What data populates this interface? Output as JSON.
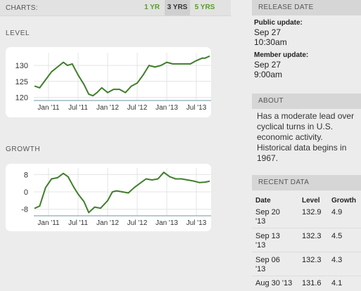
{
  "charts": {
    "label": "CHARTS:",
    "ranges": [
      "1 YR",
      "3 YRS",
      "5 YRS"
    ],
    "selected": "3 YRS",
    "accent": "#5a9a2e"
  },
  "level_chart": {
    "title": "LEVEL",
    "x_ticks": [
      "Jan '11",
      "Jul '11",
      "Jan '12",
      "Jul '12",
      "Jan '13",
      "Jul '13"
    ],
    "y_ticks": [
      "130",
      "125",
      "120"
    ]
  },
  "growth_chart": {
    "title": "GROWTH",
    "x_ticks": [
      "Jan '11",
      "Jul '11",
      "Jan '12",
      "Jul '12",
      "Jan '13",
      "Jul '13"
    ],
    "y_ticks": [
      "8",
      "0",
      "-8"
    ]
  },
  "chart_data": [
    {
      "type": "line",
      "title": "LEVEL",
      "ylim": [
        119,
        134
      ],
      "xlim": [
        2010.75,
        2013.75
      ],
      "line_color": "#3f7f2a",
      "x": [
        2010.77,
        2010.85,
        2010.95,
        2011.05,
        2011.15,
        2011.25,
        2011.32,
        2011.4,
        2011.5,
        2011.6,
        2011.68,
        2011.75,
        2011.82,
        2011.9,
        2012.0,
        2012.1,
        2012.2,
        2012.3,
        2012.4,
        2012.5,
        2012.6,
        2012.7,
        2012.8,
        2012.9,
        2013.0,
        2013.1,
        2013.2,
        2013.3,
        2013.4,
        2013.5,
        2013.6,
        2013.65,
        2013.72
      ],
      "values": [
        123.5,
        123.0,
        125.5,
        128.0,
        129.5,
        131.0,
        130.0,
        130.5,
        127.0,
        124.0,
        121.0,
        120.5,
        121.5,
        123.0,
        121.5,
        122.5,
        122.5,
        121.5,
        123.5,
        124.5,
        127.0,
        130.0,
        129.5,
        130.0,
        131.0,
        130.5,
        130.5,
        130.5,
        130.5,
        131.5,
        132.3,
        132.3,
        132.9
      ]
    },
    {
      "type": "line",
      "title": "GROWTH",
      "ylim": [
        -11,
        11
      ],
      "xlim": [
        2010.75,
        2013.75
      ],
      "line_color": "#3f7f2a",
      "x": [
        2010.77,
        2010.85,
        2010.95,
        2011.05,
        2011.15,
        2011.25,
        2011.33,
        2011.42,
        2011.5,
        2011.6,
        2011.68,
        2011.78,
        2011.88,
        2012.0,
        2012.08,
        2012.15,
        2012.25,
        2012.35,
        2012.45,
        2012.55,
        2012.65,
        2012.75,
        2012.85,
        2012.95,
        2013.05,
        2013.15,
        2013.25,
        2013.35,
        2013.45,
        2013.55,
        2013.65,
        2013.72
      ],
      "values": [
        -7.5,
        -6.5,
        2.0,
        6.0,
        6.5,
        8.5,
        7.0,
        2.5,
        -1.0,
        -4.5,
        -9.5,
        -7.0,
        -7.5,
        -4.0,
        0.0,
        0.5,
        0.0,
        -0.5,
        2.0,
        4.0,
        6.0,
        5.5,
        6.0,
        9.0,
        7.0,
        6.0,
        6.0,
        5.5,
        5.0,
        4.3,
        4.5,
        4.9
      ]
    }
  ],
  "release_date": {
    "header": "RELEASE DATE",
    "public_label": "Public update:",
    "public_date": "Sep 27",
    "public_time": "10:30am",
    "member_label": "Member update:",
    "member_date": "Sep 27",
    "member_time": "9:00am"
  },
  "about": {
    "header": "ABOUT",
    "text": "Has a moderate lead over cyclical turns in U.S. economic activity. Historical data begins in 1967."
  },
  "recent_data": {
    "header": "RECENT DATA",
    "columns": [
      "Date",
      "Level",
      "Growth"
    ],
    "rows": [
      {
        "date": "Sep 20",
        "year": "'13",
        "level": "132.9",
        "growth": "4.9"
      },
      {
        "date": "Sep 13",
        "year": "'13",
        "level": "132.3",
        "growth": "4.5"
      },
      {
        "date": "Sep 06",
        "year": "'13",
        "level": "132.3",
        "growth": "4.3"
      },
      {
        "date": "Aug 30 '13",
        "year": "",
        "level": "131.6",
        "growth": "4.1"
      }
    ]
  }
}
